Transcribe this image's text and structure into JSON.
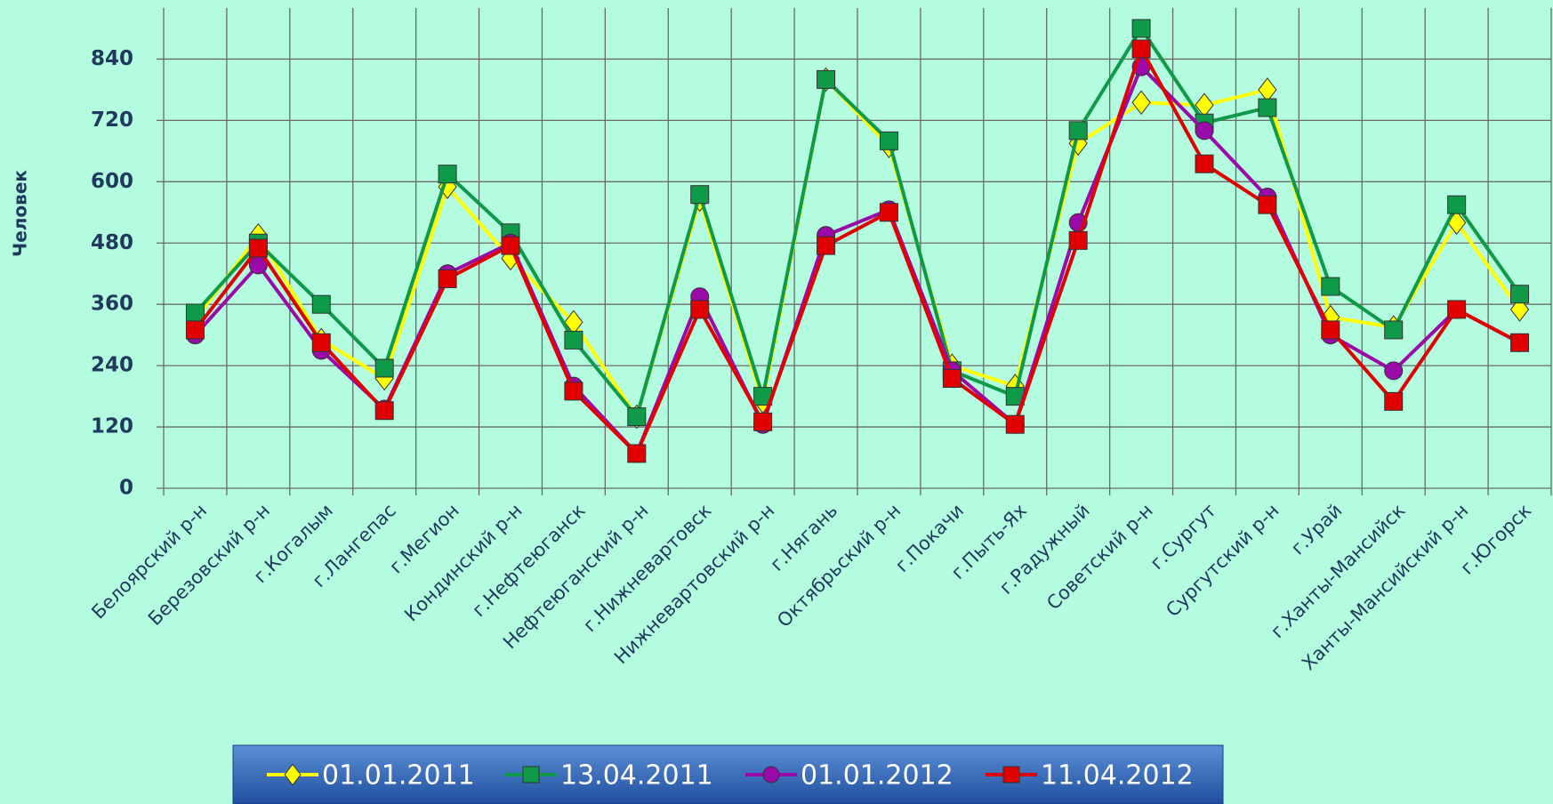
{
  "chart_data": {
    "type": "line",
    "y_label": "Человек",
    "categories": [
      "Белоярский р-н",
      "Березовский р-н",
      "г.Когалым",
      "г.Лангепас",
      "г.Мегион",
      "Кондинский р-н",
      "г.Нефтеюганск",
      "Нефтеюганский р-н",
      "г.Нижневартовск",
      "Нижневартовский р-н",
      "г.Нягань",
      "Октябрьский р-н",
      "г.Покачи",
      "г.Пыть-Ях",
      "г.Радужный",
      "Советский р-н",
      "г.Сургут",
      "Сургутский р-н",
      "г.Урай",
      "г.Ханты-Мансийск",
      "Ханты-Мансийский р-н",
      "г.Югорск"
    ],
    "series": [
      {
        "name": "01.01.2011",
        "color": "#ffff00",
        "marker": "diamond",
        "values": [
          330,
          495,
          290,
          215,
          590,
          450,
          325,
          140,
          565,
          170,
          800,
          670,
          240,
          200,
          675,
          755,
          750,
          780,
          335,
          315,
          520,
          350
        ]
      },
      {
        "name": "13.04.2011",
        "color": "#0f9a4a",
        "marker": "square",
        "values": [
          343,
          480,
          360,
          235,
          615,
          500,
          290,
          140,
          575,
          180,
          800,
          680,
          230,
          180,
          700,
          900,
          715,
          745,
          395,
          310,
          555,
          380
        ]
      },
      {
        "name": "01.01.2012",
        "color": "#9a0aa8",
        "marker": "circle",
        "values": [
          300,
          437,
          270,
          155,
          420,
          480,
          200,
          68,
          375,
          125,
          495,
          545,
          230,
          125,
          520,
          825,
          700,
          570,
          300,
          230,
          350,
          285
        ]
      },
      {
        "name": "11.04.2012",
        "color": "#e00000",
        "marker": "square",
        "values": [
          310,
          470,
          285,
          152,
          410,
          475,
          190,
          68,
          350,
          130,
          475,
          540,
          215,
          125,
          485,
          860,
          635,
          555,
          310,
          170,
          350,
          285
        ]
      }
    ],
    "ylim": [
      0,
      940
    ],
    "yticks": [
      0,
      120,
      240,
      360,
      480,
      600,
      720,
      840
    ],
    "grid": true,
    "legend": "bottom"
  }
}
